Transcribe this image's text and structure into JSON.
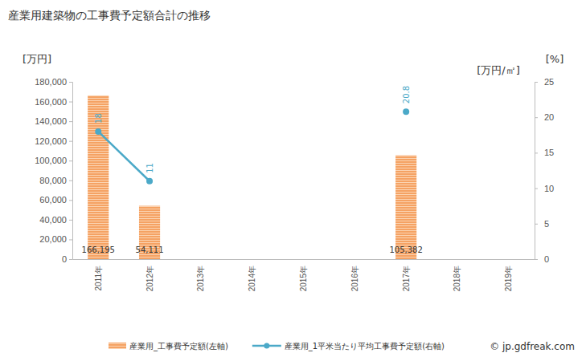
{
  "chart_data": {
    "type": "bar",
    "title": "産業用建築物の工事費予定額合計の推移",
    "ylabel": "[万円]",
    "y2label": "[万円/㎡]",
    "annotations": [
      "[%]",
      "© jp.gdfreak.com"
    ],
    "categories": [
      "2011年",
      "2012年",
      "2013年",
      "2014年",
      "2015年",
      "2016年",
      "2017年",
      "2018年",
      "2019年"
    ],
    "series": [
      {
        "name": "産業用_工事費予定額(左軸)",
        "type": "bar",
        "color": "#f5a263",
        "values": [
          166195,
          54111,
          null,
          null,
          null,
          null,
          105382,
          null,
          null
        ],
        "value_labels": [
          "166,195",
          "54,111",
          null,
          null,
          null,
          null,
          "105,382",
          null,
          null
        ]
      },
      {
        "name": "産業用_1平米当たり平均工事費予定額(右軸)",
        "type": "line",
        "axis": "y2",
        "color": "#4ba9c8",
        "marker": "circle",
        "values": [
          18,
          11,
          null,
          null,
          null,
          null,
          20.8,
          null,
          null
        ]
      }
    ],
    "ylim": [
      0,
      180000
    ],
    "yticks": [
      0,
      {
        "value": 20000,
        "label": "20,000"
      },
      {
        "value": 40000,
        "label": "40,000"
      },
      {
        "value": 60000,
        "label": "60,000"
      },
      {
        "value": 80000,
        "label": "80,000"
      },
      {
        "value": 100000,
        "label": "100,000"
      },
      {
        "value": 120000,
        "label": "120,000"
      },
      {
        "value": 140000,
        "label": "140,000"
      },
      {
        "value": 160000,
        "label": "160,000"
      },
      {
        "value": 180000,
        "label": "180,000"
      }
    ],
    "y2lim": [
      0,
      25
    ],
    "y2ticks": [
      0,
      5,
      10,
      15,
      20,
      25
    ],
    "grid": false,
    "data_labels": true,
    "legend": "bottom"
  }
}
